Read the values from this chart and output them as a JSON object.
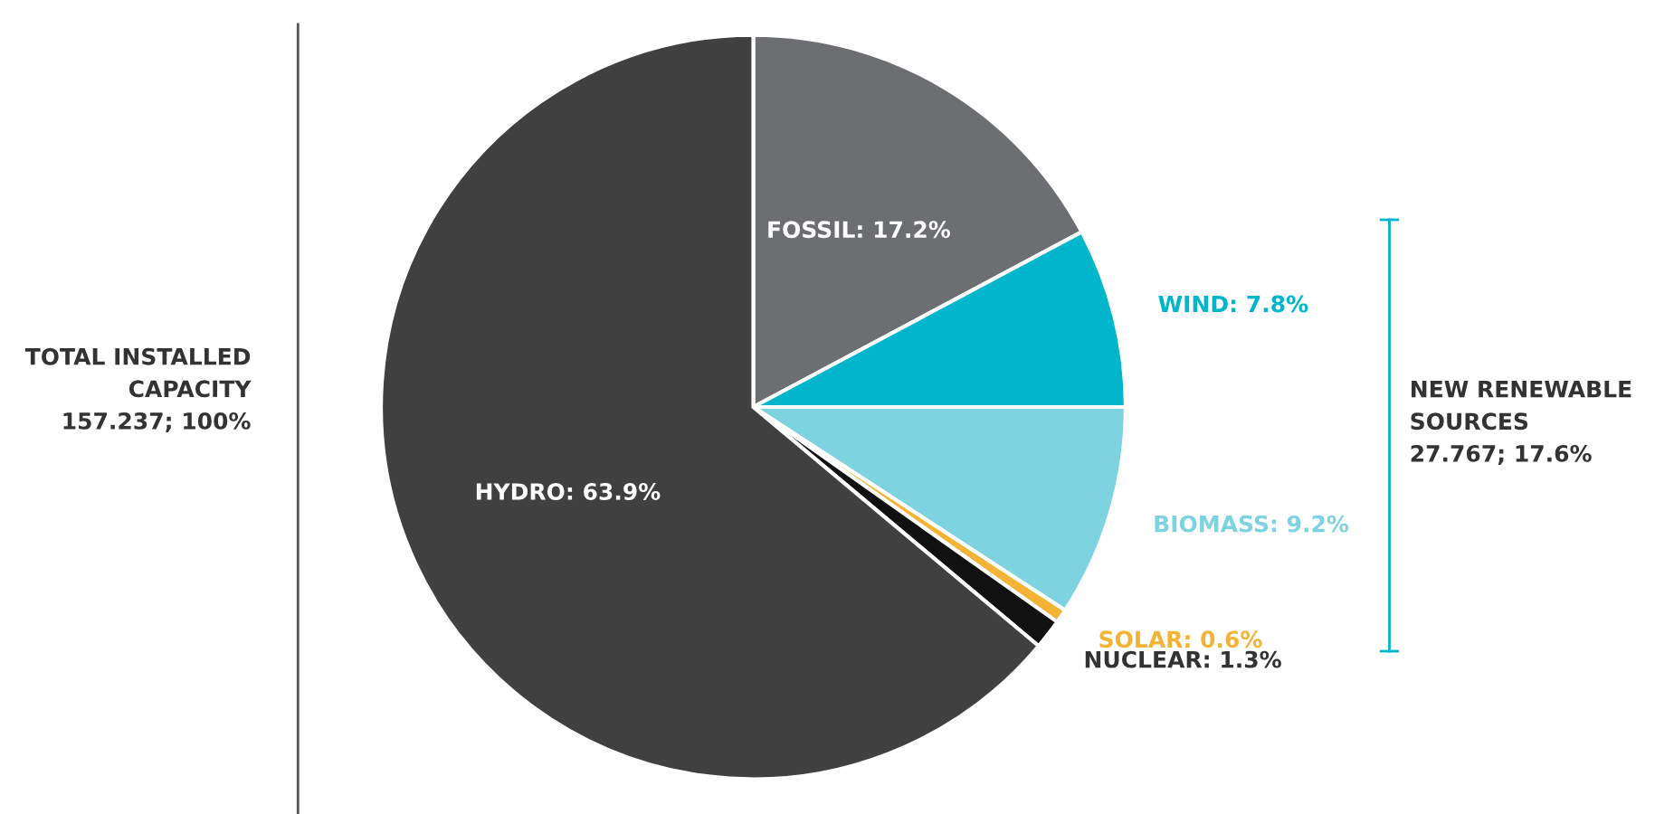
{
  "chart_data": {
    "type": "pie",
    "categories": [
      "FOSSIL",
      "WIND",
      "BIOMASS",
      "SOLAR",
      "NUCLEAR",
      "HYDRO"
    ],
    "values": [
      17.2,
      7.8,
      9.2,
      0.6,
      1.3,
      63.9
    ],
    "value_labels": [
      "17.2%",
      "7.8%",
      "9.2%",
      "0.6%",
      "1.3%",
      "63.9%"
    ],
    "colors": [
      "#6d6e71",
      "#00b5cc",
      "#7dd3df",
      "#f5b335",
      "#111111",
      "#404041"
    ],
    "annotations": [
      "TOTAL INSTALLED\nCAPACITY\n157.237; 100%",
      "NEW RENEWABLE\nSOURCES\n27.767; 17.6%"
    ],
    "legend": false
  }
}
